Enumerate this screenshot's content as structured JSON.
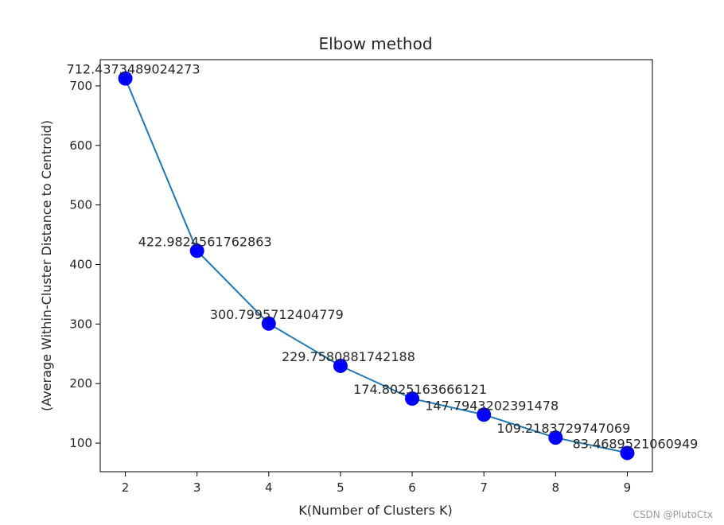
{
  "chart_data": {
    "type": "line",
    "title": "Elbow method",
    "xlabel": "K(Number of Clusters K)",
    "ylabel": "(Average Within-Cluster Distance to Centroid)",
    "x": [
      2,
      3,
      4,
      5,
      6,
      7,
      8,
      9
    ],
    "y": [
      712.4373489024273,
      422.9824561762863,
      300.7995712404779,
      229.7580881742188,
      174.8025163666121,
      147.7943202391478,
      109.2183729747069,
      83.4689521060949
    ],
    "point_labels": [
      "712.4373489024273",
      "422.9824561762863",
      "300.7995712404779",
      "229.7580881742188",
      "174.8025163666121",
      "147.7943202391478",
      "109.2183729747069",
      "83.4689521060949"
    ],
    "xticks": [
      "2",
      "3",
      "4",
      "5",
      "6",
      "7",
      "8",
      "9"
    ],
    "yticks": [
      "100",
      "200",
      "300",
      "400",
      "500",
      "600",
      "700"
    ],
    "xlim": [
      1.65,
      9.35
    ],
    "ylim": [
      52,
      744
    ],
    "line_color": "#1f77b4",
    "marker_color": "#0000ff",
    "grid": false,
    "legend": "none"
  },
  "watermark": "CSDN @PlutoCtx"
}
